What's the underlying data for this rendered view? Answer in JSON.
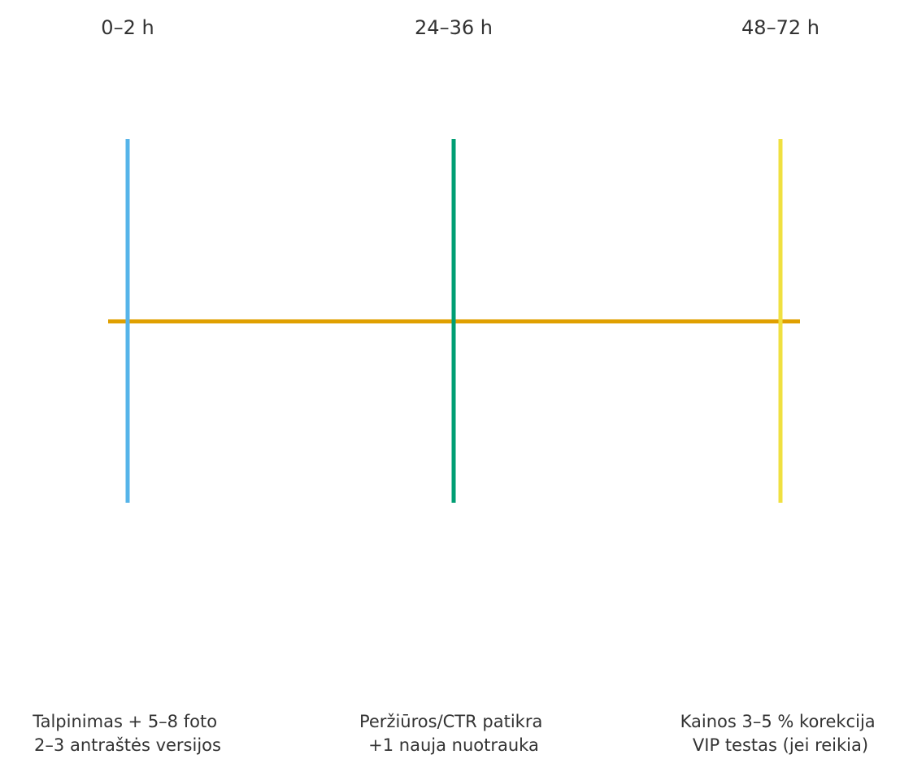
{
  "timeline": {
    "axis_color": "#E0A000",
    "milestones": [
      {
        "time": "0–2 h",
        "color": "#56B4E9",
        "lines": [
          "Talpinimas + 5–8 foto",
          "2–3 antraštės versijos"
        ]
      },
      {
        "time": "24–36 h",
        "color": "#009E73",
        "lines": [
          "Peržiūros/CTR patikra",
          "+1 nauja nuotrauka"
        ]
      },
      {
        "time": "48–72 h",
        "color": "#F0E040",
        "lines": [
          "Kainos 3–5 % korekcija",
          "VIP testas (jei reikia)"
        ]
      }
    ]
  }
}
